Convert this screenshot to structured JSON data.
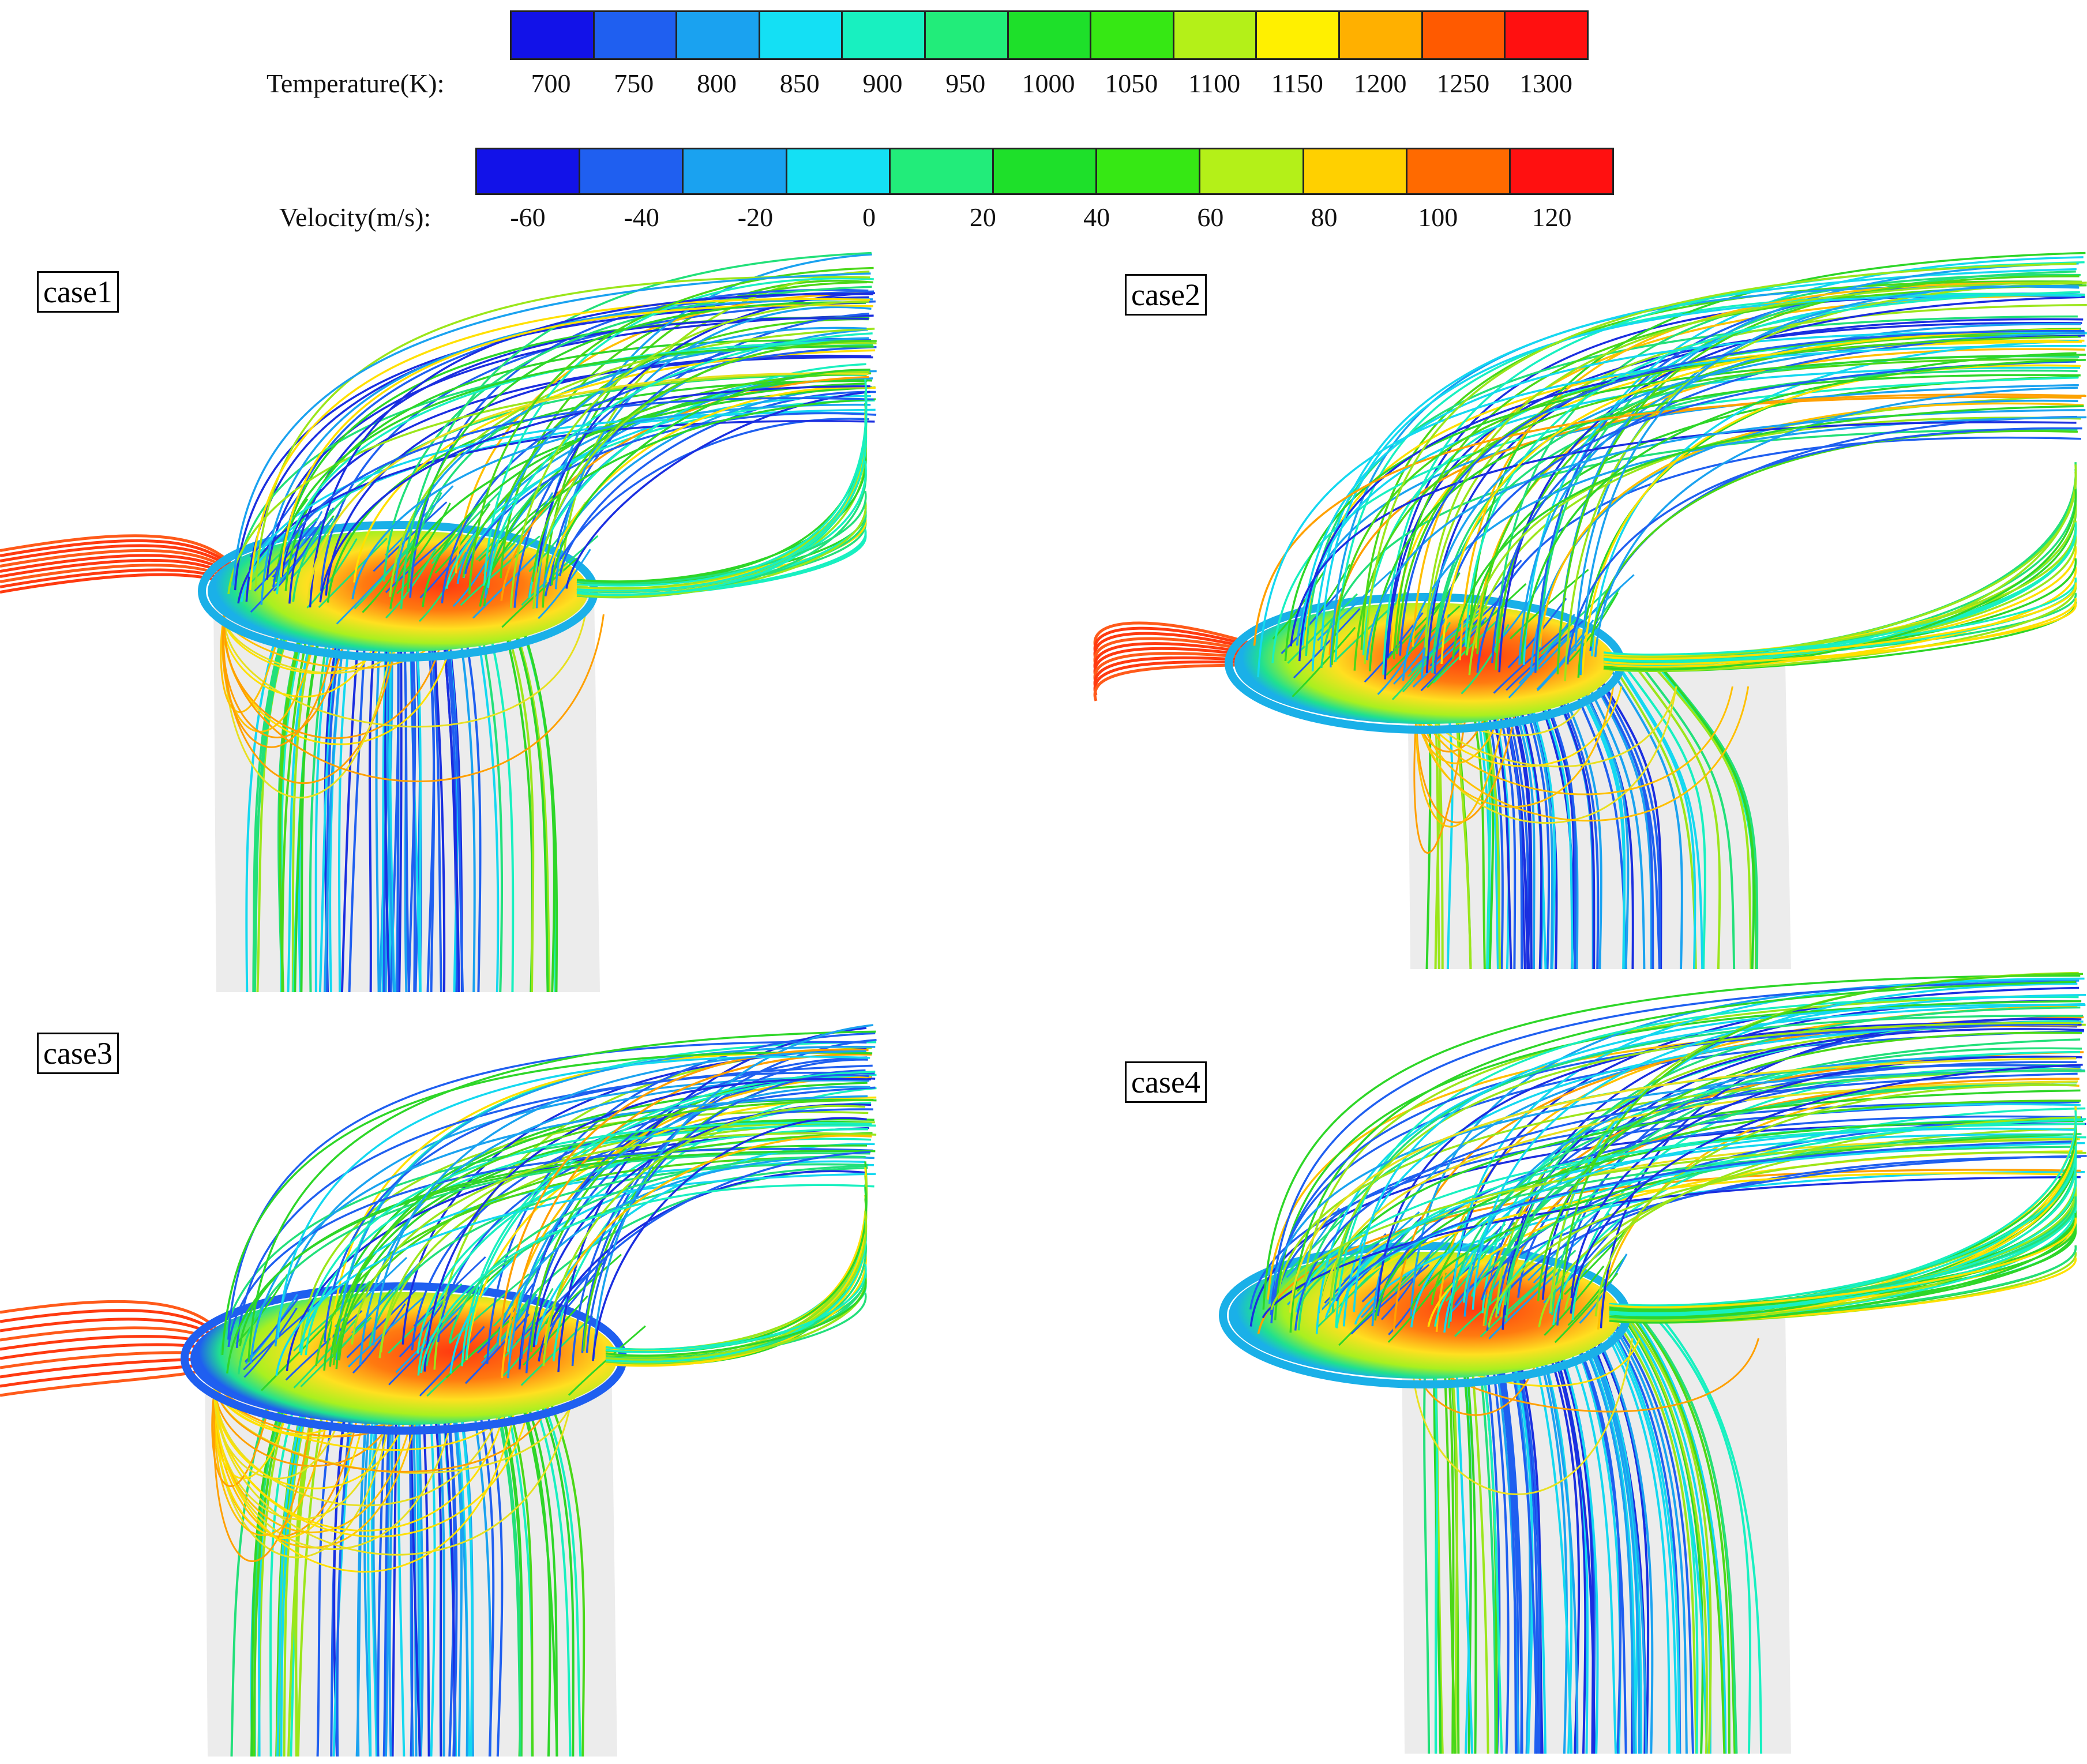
{
  "temperature_legend": {
    "title": "Temperature(K):",
    "colors": [
      "#1212e8",
      "#1f5ff0",
      "#1aa2f0",
      "#14e0f4",
      "#18f0c0",
      "#22ec7a",
      "#1ee02a",
      "#36e814",
      "#b4f018",
      "#fff000",
      "#ffb000",
      "#ff5a00",
      "#ff1010"
    ],
    "ticks": [
      "700",
      "750",
      "800",
      "850",
      "900",
      "950",
      "1000",
      "1050",
      "1100",
      "1150",
      "1200",
      "1250",
      "1300"
    ]
  },
  "velocity_legend": {
    "title": "Velocity(m/s):",
    "colors": [
      "#1212e8",
      "#1f5ff0",
      "#1aa2f0",
      "#14e0f4",
      "#22ec7a",
      "#1ee02a",
      "#36e814",
      "#b4f018",
      "#ffd000",
      "#ff6a00",
      "#ff1010"
    ],
    "ticks": [
      "-60",
      "-40",
      "-20",
      "0",
      "20",
      "40",
      "60",
      "80",
      "100",
      "120"
    ]
  },
  "panels": [
    {
      "label": "case1"
    },
    {
      "label": "case2"
    },
    {
      "label": "case3"
    },
    {
      "label": "case4"
    }
  ]
}
